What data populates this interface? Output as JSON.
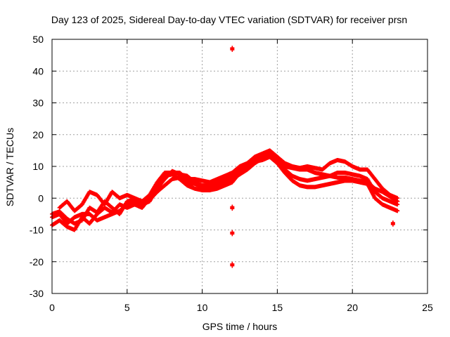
{
  "chart_data": {
    "type": "scatter",
    "title": "Day 123 of 2025, Sidereal Day-to-day VTEC variation (SDTVAR) for receiver prsn",
    "xlabel": "GPS time / hours",
    "ylabel": "SDTVAR / TECUs",
    "xlim": [
      0,
      25
    ],
    "ylim": [
      -30,
      50
    ],
    "xticks": [
      0,
      5,
      10,
      15,
      20,
      25
    ],
    "yticks": [
      -30,
      -20,
      -10,
      0,
      10,
      20,
      30,
      40,
      50
    ],
    "grid": true,
    "marker_color": "#ff0000",
    "series": [
      {
        "name": "track-1",
        "points": [
          [
            0,
            -5
          ],
          [
            0.5,
            -4.2
          ],
          [
            1,
            -6.5
          ],
          [
            1.5,
            -8
          ],
          [
            2,
            -7
          ],
          [
            2.5,
            -3
          ],
          [
            3,
            -4.5
          ],
          [
            3.5,
            -1
          ],
          [
            4,
            -3
          ],
          [
            4.5,
            -5
          ],
          [
            5,
            -1
          ],
          [
            5.5,
            -0.5
          ],
          [
            6,
            -2
          ],
          [
            6.5,
            -1
          ],
          [
            7,
            3
          ],
          [
            7.5,
            6
          ],
          [
            8,
            8.5
          ],
          [
            8.5,
            7.5
          ],
          [
            9,
            7
          ],
          [
            9.5,
            5
          ],
          [
            10,
            4
          ],
          [
            10.5,
            4
          ],
          [
            11,
            5
          ],
          [
            11.5,
            6
          ],
          [
            12,
            7
          ],
          [
            12.5,
            9
          ],
          [
            13,
            10.5
          ],
          [
            13.5,
            12
          ],
          [
            14,
            13
          ],
          [
            14.5,
            14.5
          ],
          [
            15,
            12
          ],
          [
            15.5,
            10
          ],
          [
            16,
            9.5
          ],
          [
            16.5,
            9
          ],
          [
            17,
            9
          ],
          [
            17.5,
            8
          ],
          [
            18,
            7.5
          ],
          [
            18.5,
            7
          ],
          [
            19,
            6.5
          ],
          [
            19.5,
            6.5
          ],
          [
            20,
            6
          ],
          [
            20.5,
            5.5
          ],
          [
            21,
            5
          ],
          [
            21.5,
            3
          ],
          [
            22,
            2
          ],
          [
            22.5,
            0.5
          ],
          [
            23,
            -1
          ]
        ]
      },
      {
        "name": "track-2",
        "points": [
          [
            0,
            -8.5
          ],
          [
            0.5,
            -7
          ],
          [
            1,
            -9
          ],
          [
            1.5,
            -10
          ],
          [
            2,
            -6
          ],
          [
            2.5,
            -8
          ],
          [
            3,
            -5
          ],
          [
            3.5,
            -3
          ],
          [
            4,
            -4.5
          ],
          [
            4.5,
            -2
          ],
          [
            5,
            -3
          ],
          [
            5.5,
            -2
          ],
          [
            6,
            -3
          ],
          [
            6.5,
            0
          ],
          [
            7,
            4
          ],
          [
            7.5,
            7
          ],
          [
            8,
            7.5
          ],
          [
            8.5,
            6
          ],
          [
            9,
            4
          ],
          [
            9.5,
            3
          ],
          [
            10,
            2.5
          ],
          [
            10.5,
            2.5
          ],
          [
            11,
            3
          ],
          [
            11.5,
            4
          ],
          [
            12,
            5
          ],
          [
            12.5,
            8
          ],
          [
            13,
            10
          ],
          [
            13.5,
            11.5
          ],
          [
            14,
            12
          ],
          [
            14.5,
            13
          ],
          [
            15,
            11
          ],
          [
            15.5,
            8
          ],
          [
            16,
            5.5
          ],
          [
            16.5,
            4
          ],
          [
            17,
            3.5
          ],
          [
            17.5,
            3.5
          ],
          [
            18,
            4
          ],
          [
            18.5,
            4.5
          ],
          [
            19,
            5
          ],
          [
            19.5,
            5.5
          ],
          [
            20,
            5.5
          ],
          [
            20.5,
            5
          ],
          [
            21,
            4.5
          ],
          [
            21.5,
            0
          ],
          [
            22,
            -2
          ],
          [
            22.5,
            -3
          ],
          [
            23,
            -4
          ]
        ]
      },
      {
        "name": "track-3",
        "points": [
          [
            0,
            -6
          ],
          [
            0.5,
            -5
          ],
          [
            1,
            -8
          ],
          [
            1.5,
            -6
          ],
          [
            2,
            -5
          ],
          [
            2.5,
            -5
          ],
          [
            3,
            -7
          ],
          [
            3.5,
            -6
          ],
          [
            4,
            -5
          ],
          [
            4.5,
            -4
          ],
          [
            5,
            -2
          ],
          [
            5.5,
            -1.5
          ],
          [
            6,
            -1
          ],
          [
            6.5,
            -0.5
          ],
          [
            7,
            2
          ],
          [
            7.5,
            4
          ],
          [
            8,
            6
          ],
          [
            8.5,
            6.5
          ],
          [
            9,
            5
          ],
          [
            9.5,
            4.5
          ],
          [
            10,
            3.5
          ],
          [
            10.5,
            3
          ],
          [
            11,
            4
          ],
          [
            11.5,
            5
          ],
          [
            12,
            6
          ],
          [
            12.5,
            7.5
          ],
          [
            13,
            9
          ],
          [
            13.5,
            11
          ],
          [
            14,
            12.5
          ],
          [
            14.5,
            13.5
          ],
          [
            15,
            11.5
          ],
          [
            15.5,
            9
          ],
          [
            16,
            7
          ],
          [
            16.5,
            6
          ],
          [
            17,
            5.5
          ],
          [
            17.5,
            6
          ],
          [
            18,
            6.5
          ],
          [
            18.5,
            7
          ],
          [
            19,
            8
          ],
          [
            19.5,
            8
          ],
          [
            20,
            7.5
          ],
          [
            20.5,
            7
          ],
          [
            21,
            6
          ],
          [
            21.5,
            2
          ],
          [
            22,
            0
          ],
          [
            22.5,
            -1
          ],
          [
            23,
            -2
          ]
        ]
      },
      {
        "name": "track-4",
        "points": [
          [
            0.5,
            -3
          ],
          [
            1,
            -1
          ],
          [
            1.5,
            -4
          ],
          [
            2,
            -2
          ],
          [
            2.5,
            2
          ],
          [
            3,
            1
          ],
          [
            3.5,
            -2
          ],
          [
            4,
            2
          ],
          [
            4.5,
            0
          ],
          [
            5,
            1
          ],
          [
            5.5,
            0
          ],
          [
            6,
            -1
          ],
          [
            6.5,
            1
          ],
          [
            7,
            5
          ],
          [
            7.5,
            8
          ],
          [
            8,
            8
          ],
          [
            8.5,
            8
          ],
          [
            9,
            6
          ],
          [
            9.5,
            6
          ],
          [
            10,
            5.5
          ],
          [
            10.5,
            5
          ],
          [
            11,
            6
          ],
          [
            11.5,
            7
          ],
          [
            12,
            8
          ],
          [
            12.5,
            10
          ],
          [
            13,
            11
          ],
          [
            13.5,
            13
          ],
          [
            14,
            14
          ],
          [
            14.5,
            15
          ],
          [
            15,
            13
          ],
          [
            15.5,
            11
          ],
          [
            16,
            10
          ],
          [
            16.5,
            9.5
          ],
          [
            17,
            10
          ],
          [
            17.5,
            9.5
          ],
          [
            18,
            9
          ],
          [
            18.5,
            11
          ],
          [
            19,
            12
          ],
          [
            19.5,
            11.5
          ],
          [
            20,
            10
          ],
          [
            20.5,
            9
          ],
          [
            21,
            9
          ],
          [
            21.5,
            6
          ],
          [
            22,
            3
          ],
          [
            22.5,
            1
          ],
          [
            23,
            0
          ]
        ]
      },
      {
        "name": "outliers",
        "points": [
          [
            12,
            47
          ],
          [
            12,
            -3
          ],
          [
            12,
            -11
          ],
          [
            12,
            -21
          ],
          [
            22.7,
            -8
          ]
        ]
      }
    ]
  }
}
